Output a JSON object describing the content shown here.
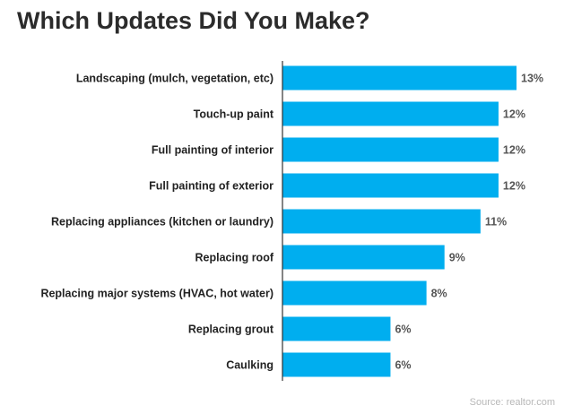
{
  "title": "Which Updates Did You Make?",
  "source": "Source: realtor.com",
  "chart_data": {
    "type": "bar",
    "orientation": "horizontal",
    "title": "Which Updates Did You Make?",
    "categories": [
      "Landscaping (mulch, vegetation, etc)",
      "Touch-up paint",
      "Full painting of interior",
      "Full painting of exterior",
      "Replacing appliances (kitchen or laundry)",
      "Replacing roof",
      "Replacing major systems (HVAC, hot water)",
      "Replacing grout",
      "Caulking"
    ],
    "values": [
      13,
      12,
      12,
      12,
      11,
      9,
      8,
      6,
      6
    ],
    "value_labels": [
      "13%",
      "12%",
      "12%",
      "12%",
      "11%",
      "9%",
      "8%",
      "6%",
      "6%"
    ],
    "unit": "%",
    "xlim": [
      0,
      13
    ],
    "grid": false,
    "legend": "none",
    "colors": {
      "bar": "#00AEEF",
      "axis": "#333333",
      "category_text": "#222222",
      "value_text": "#555555"
    }
  }
}
